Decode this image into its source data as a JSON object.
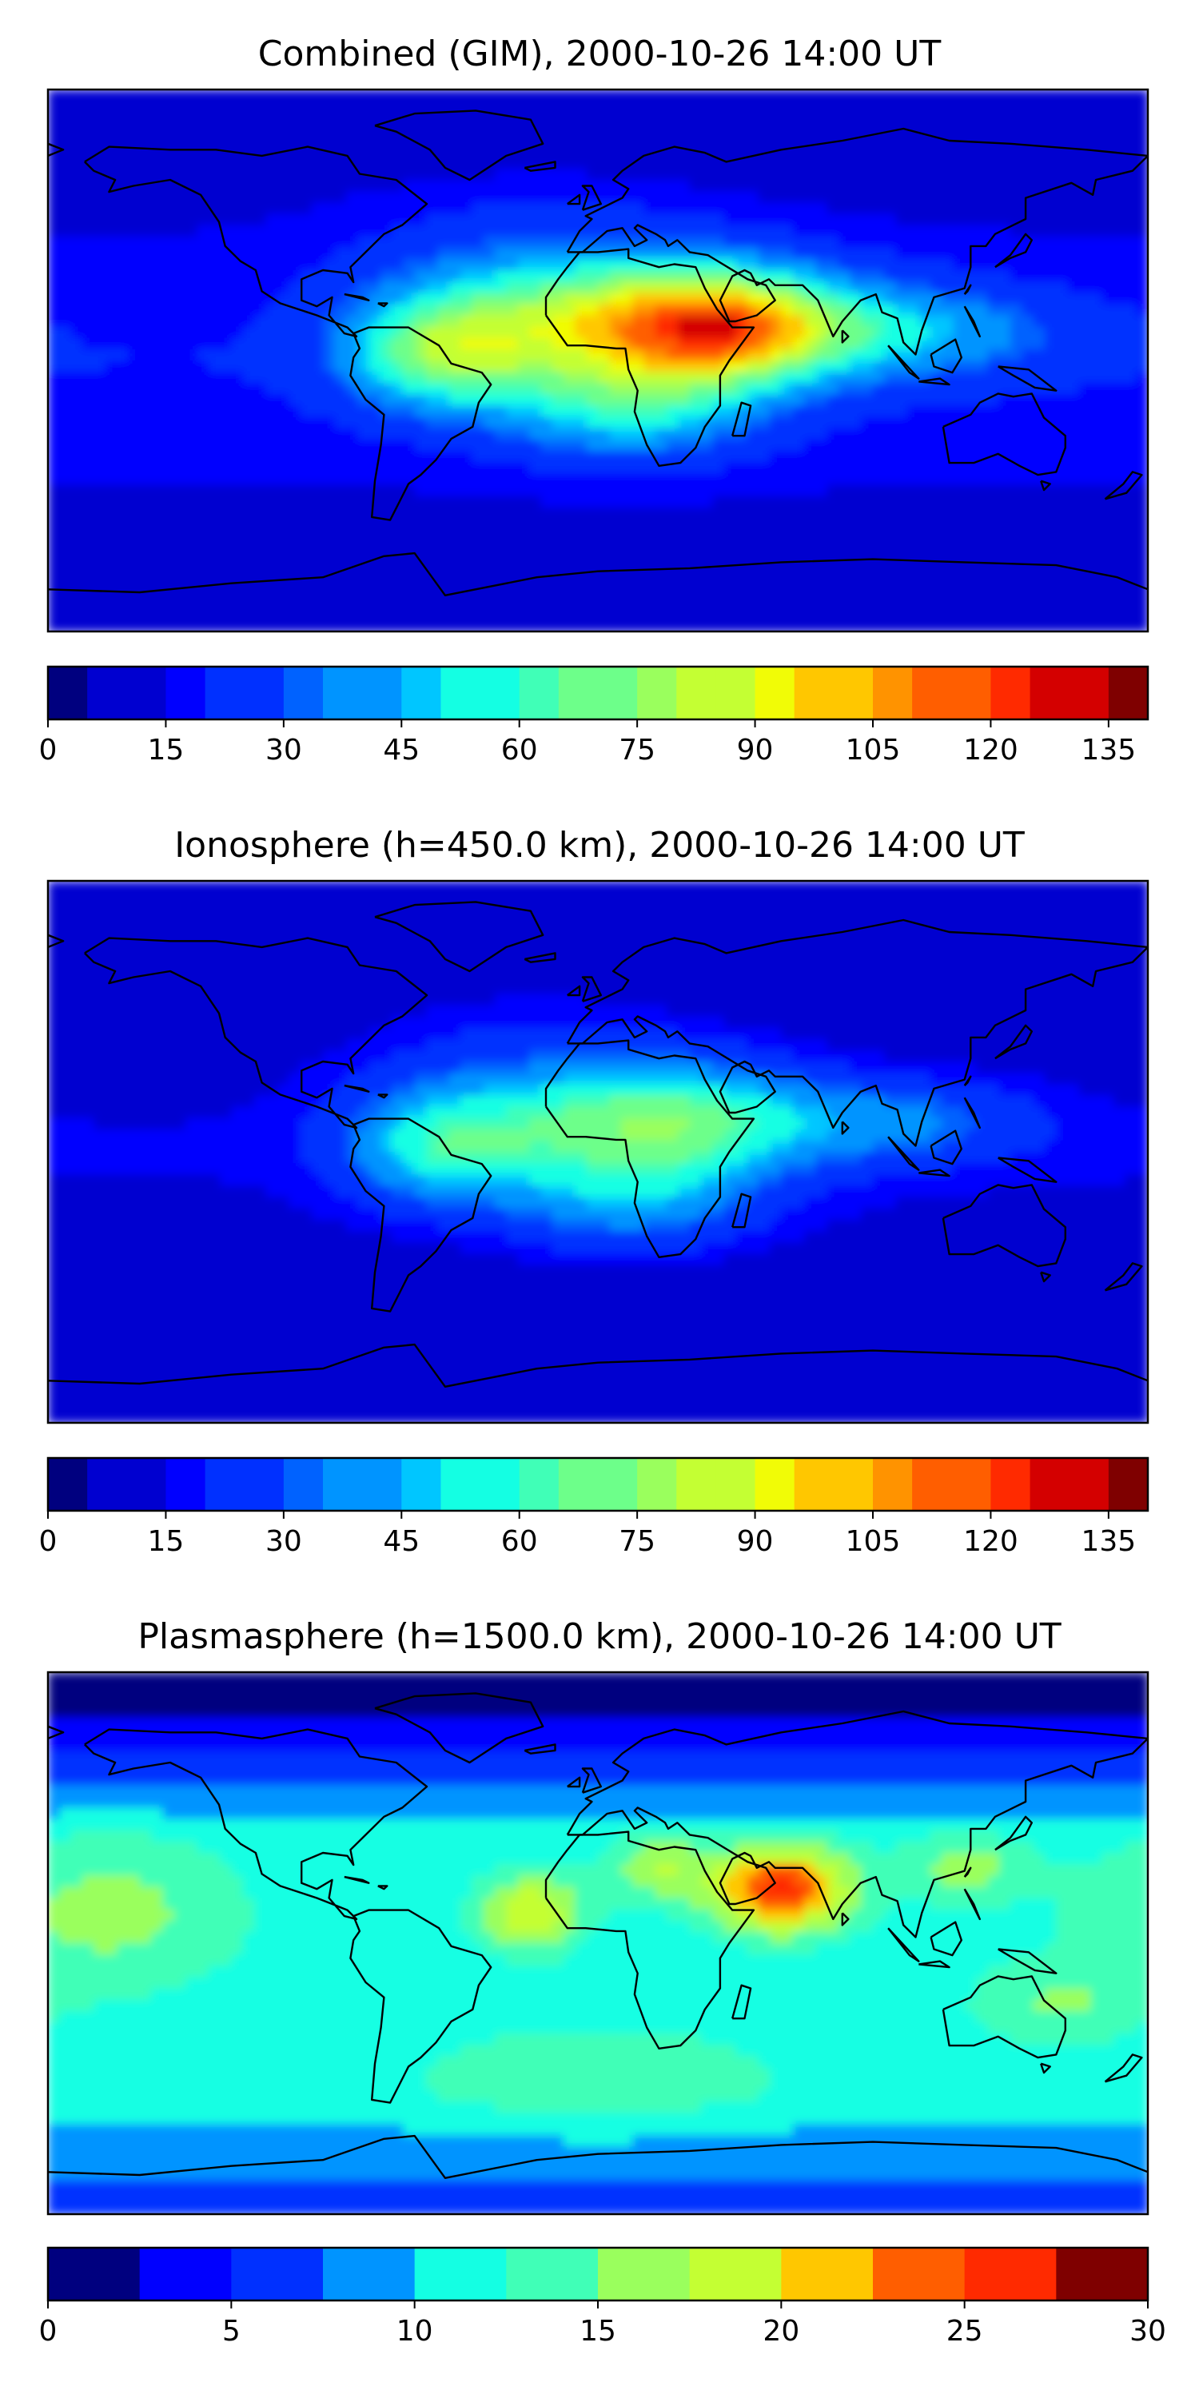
{
  "chart_data": [
    {
      "type": "heatmap",
      "title": "Combined (GIM), 2000-10-26 14:00 UT",
      "colorbar": {
        "min": 0,
        "max": 140,
        "step": 5,
        "ticks": [
          "0",
          "15",
          "30",
          "45",
          "60",
          "75",
          "90",
          "105",
          "120",
          "135"
        ]
      },
      "field": [
        {
          "lon": 20,
          "lat": 12,
          "amp": 75,
          "slon": 40,
          "slat": 14
        },
        {
          "lon": -50,
          "lat": 3,
          "amp": 50,
          "slon": 22,
          "slat": 13
        },
        {
          "lon": 45,
          "lat": 10,
          "amp": 35,
          "slon": 22,
          "slat": 12
        },
        {
          "lon": 10,
          "lat": -15,
          "amp": 35,
          "slon": 28,
          "slat": 12
        },
        {
          "lon": 100,
          "lat": 10,
          "amp": 25,
          "slon": 35,
          "slat": 10
        },
        {
          "lon": -20,
          "lat": 30,
          "amp": 12,
          "slon": 40,
          "slat": 18
        }
      ],
      "base": 20
    },
    {
      "type": "heatmap",
      "title": "Ionosphere  (h=450.0 km), 2000-10-26 14:00 UT",
      "colorbar": {
        "min": 0,
        "max": 140,
        "step": 5,
        "ticks": [
          "0",
          "15",
          "30",
          "45",
          "60",
          "75",
          "90",
          "105",
          "120",
          "135"
        ]
      },
      "field": [
        {
          "lon": 20,
          "lat": 10,
          "amp": 55,
          "slon": 36,
          "slat": 13
        },
        {
          "lon": -50,
          "lat": 2,
          "amp": 40,
          "slon": 22,
          "slat": 13
        },
        {
          "lon": 10,
          "lat": -15,
          "amp": 28,
          "slon": 28,
          "slat": 12
        },
        {
          "lon": 100,
          "lat": 10,
          "amp": 20,
          "slon": 30,
          "slat": 9
        },
        {
          "lon": -20,
          "lat": 30,
          "amp": 10,
          "slon": 40,
          "slat": 18
        }
      ],
      "base": 16
    },
    {
      "type": "heatmap",
      "title": "Plasmasphere (h=1500.0 km), 2000-10-26 14:00 UT",
      "colorbar": {
        "min": 0,
        "max": 30,
        "step": 2.5,
        "ticks": [
          "0",
          "5",
          "10",
          "15",
          "20",
          "25",
          "30"
        ]
      },
      "field": [
        {
          "lon": 60,
          "lat": 18,
          "amp": 15,
          "slon": 16,
          "slat": 10
        },
        {
          "lon": -22,
          "lat": 10,
          "amp": 9,
          "slon": 12,
          "slat": 9
        },
        {
          "lon": 20,
          "lat": 25,
          "amp": 6,
          "slon": 12,
          "slat": 8
        },
        {
          "lon": 120,
          "lat": 25,
          "amp": 5,
          "slon": 15,
          "slat": 8
        },
        {
          "lon": -160,
          "lat": 10,
          "amp": 5,
          "slon": 30,
          "slat": 18
        },
        {
          "lon": 150,
          "lat": -20,
          "amp": 4,
          "slon": 20,
          "slat": 10
        },
        {
          "lon": 0,
          "lat": -45,
          "amp": 4,
          "slon": 40,
          "slat": 12
        }
      ],
      "base": 11,
      "highLatDrop": true
    }
  ],
  "colors": {
    "jet": [
      "#00007f",
      "#0000d0",
      "#0000ff",
      "#0030ff",
      "#0062ff",
      "#0094ff",
      "#00c6ff",
      "#14ffe3",
      "#40ffb7",
      "#6dff8a",
      "#9aff5d",
      "#c4ff33",
      "#f1fc06",
      "#ffc700",
      "#ff9300",
      "#ff5e00",
      "#ff2a00",
      "#d40000",
      "#7f0000"
    ],
    "coast": "#000000"
  }
}
